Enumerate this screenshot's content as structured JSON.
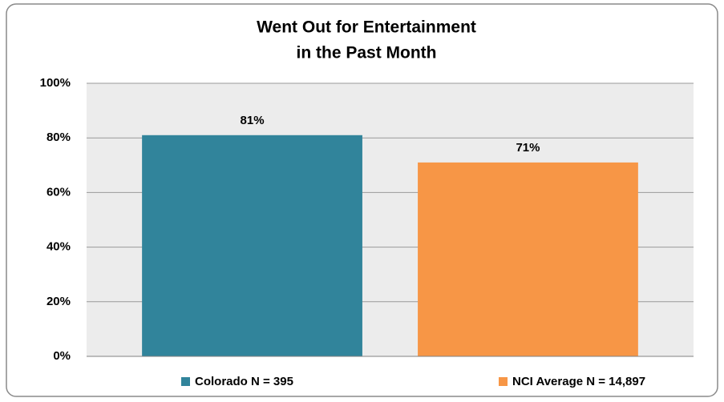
{
  "chart_data": {
    "type": "bar",
    "title": [
      "Went Out for Entertainment",
      "in the Past Month"
    ],
    "series": [
      {
        "name": "Colorado N = 395",
        "color": "#31849b",
        "values": [
          81
        ],
        "value_labels": [
          "81%"
        ]
      },
      {
        "name": "NCI Average N = 14,897",
        "color": "#f79646",
        "values": [
          71
        ],
        "value_labels": [
          "71%"
        ]
      }
    ],
    "ylim": [
      0,
      100
    ],
    "yticks": [
      {
        "value": 0,
        "label": "0%"
      },
      {
        "value": 20,
        "label": "20%"
      },
      {
        "value": 40,
        "label": "40%"
      },
      {
        "value": 60,
        "label": "60%"
      },
      {
        "value": 80,
        "label": "80%"
      },
      {
        "value": 100,
        "label": "100%"
      }
    ],
    "grid": true,
    "legend": "bottom"
  }
}
